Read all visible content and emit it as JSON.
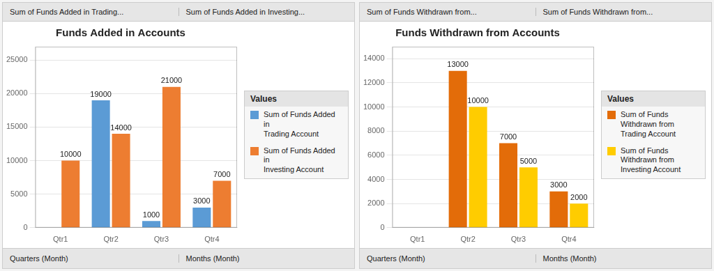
{
  "chart_data": [
    {
      "type": "bar",
      "title": "Funds Added in Accounts",
      "categories": [
        "Qtr1",
        "Qtr2",
        "Qtr3",
        "Qtr4"
      ],
      "series": [
        {
          "name": "Sum of Funds Added in\nTrading Account",
          "color": "#5B9BD5",
          "values": [
            0,
            19000,
            1000,
            3000
          ],
          "value_labels": [
            null,
            "19000",
            "1000",
            "3000"
          ]
        },
        {
          "name": "Sum of Funds Added in\nInvesting Account",
          "color": "#ED7D31",
          "values": [
            10000,
            14000,
            21000,
            7000
          ],
          "value_labels": [
            "10000",
            "14000",
            "21000",
            "7000"
          ]
        }
      ],
      "ylim": [
        0,
        27000
      ],
      "yticks": [
        0,
        5000,
        10000,
        15000,
        20000,
        25000
      ],
      "grid": true,
      "data_labels": true,
      "legend": "right",
      "legend_title": "Values",
      "annotations": [
        "Sum of Funds Added in Trading...",
        "Sum of Funds Added in Investing...",
        "Quarters (Month)",
        "Months (Month)"
      ]
    },
    {
      "type": "bar",
      "title": "Funds Withdrawn from Accounts",
      "categories": [
        "Qtr1",
        "Qtr2",
        "Qtr3",
        "Qtr4"
      ],
      "series": [
        {
          "name": "Sum of Funds\nWithdrawn from\nTrading Account",
          "color": "#E36C09",
          "values": [
            0,
            13000,
            7000,
            3000
          ],
          "value_labels": [
            null,
            "13000",
            "7000",
            "3000"
          ]
        },
        {
          "name": "Sum of Funds\nWithdrawn from\nInvesting Account",
          "color": "#FFCC00",
          "values": [
            0,
            10000,
            5000,
            2000
          ],
          "value_labels": [
            null,
            "10000",
            "5000",
            "2000"
          ]
        }
      ],
      "ylim": [
        0,
        15000
      ],
      "yticks": [
        0,
        2000,
        4000,
        6000,
        8000,
        10000,
        12000,
        14000
      ],
      "grid": true,
      "data_labels": true,
      "legend": "right",
      "legend_title": "Values",
      "annotations": [
        "Sum of Funds Withdrawn from...",
        "Sum of Funds Withdrawn from...",
        "Quarters (Month)",
        "Months (Month)"
      ]
    }
  ]
}
